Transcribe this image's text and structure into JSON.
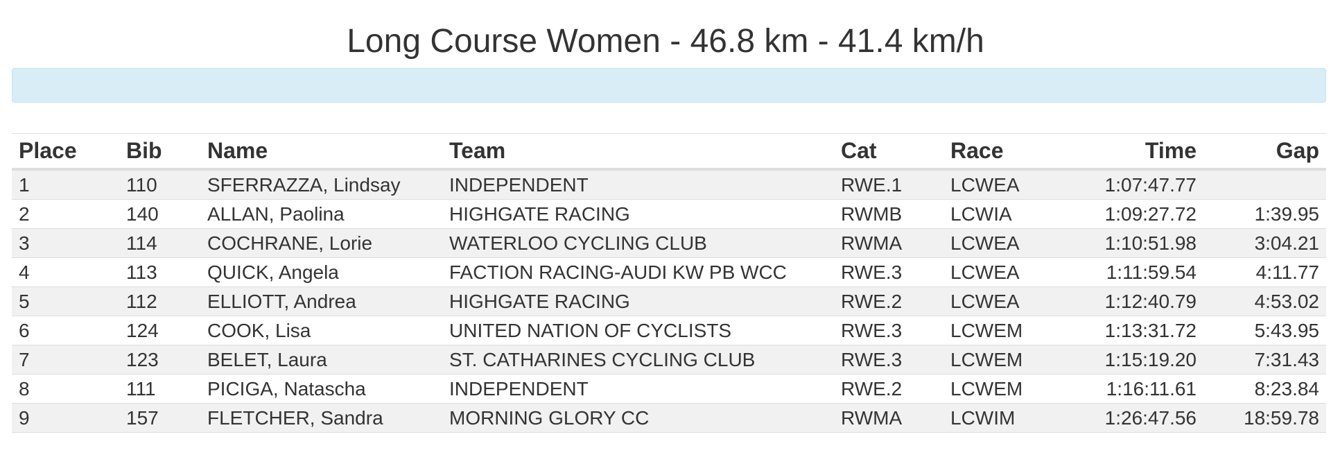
{
  "page": {
    "title": "Long Course Women - 46.8 km - 41.4 km/h",
    "info_bar_color": "#d9edf7"
  },
  "table": {
    "headers": {
      "place": "Place",
      "bib": "Bib",
      "name": "Name",
      "team": "Team",
      "cat": "Cat",
      "race": "Race",
      "time": "Time",
      "gap": "Gap"
    },
    "rows": [
      {
        "place": "1",
        "bib": "110",
        "name": "SFERRAZZA, Lindsay",
        "team": "INDEPENDENT",
        "cat": "RWE.1",
        "race": "LCWEA",
        "time": "1:07:47.77",
        "gap": ""
      },
      {
        "place": "2",
        "bib": "140",
        "name": "ALLAN, Paolina",
        "team": "HIGHGATE RACING",
        "cat": "RWMB",
        "race": "LCWIA",
        "time": "1:09:27.72",
        "gap": "1:39.95"
      },
      {
        "place": "3",
        "bib": "114",
        "name": "COCHRANE, Lorie",
        "team": "WATERLOO CYCLING CLUB",
        "cat": "RWMA",
        "race": "LCWEA",
        "time": "1:10:51.98",
        "gap": "3:04.21"
      },
      {
        "place": "4",
        "bib": "113",
        "name": "QUICK, Angela",
        "team": "FACTION RACING-AUDI KW PB WCC",
        "cat": "RWE.3",
        "race": "LCWEA",
        "time": "1:11:59.54",
        "gap": "4:11.77"
      },
      {
        "place": "5",
        "bib": "112",
        "name": "ELLIOTT, Andrea",
        "team": "HIGHGATE RACING",
        "cat": "RWE.2",
        "race": "LCWEA",
        "time": "1:12:40.79",
        "gap": "4:53.02"
      },
      {
        "place": "6",
        "bib": "124",
        "name": "COOK, Lisa",
        "team": "UNITED NATION OF CYCLISTS",
        "cat": "RWE.3",
        "race": "LCWEM",
        "time": "1:13:31.72",
        "gap": "5:43.95"
      },
      {
        "place": "7",
        "bib": "123",
        "name": "BELET, Laura",
        "team": "ST. CATHARINES CYCLING CLUB",
        "cat": "RWE.3",
        "race": "LCWEM",
        "time": "1:15:19.20",
        "gap": "7:31.43"
      },
      {
        "place": "8",
        "bib": "111",
        "name": "PICIGA, Natascha",
        "team": "INDEPENDENT",
        "cat": "RWE.2",
        "race": "LCWEM",
        "time": "1:16:11.61",
        "gap": "8:23.84"
      },
      {
        "place": "9",
        "bib": "157",
        "name": "FLETCHER, Sandra",
        "team": "MORNING GLORY CC",
        "cat": "RWMA",
        "race": "LCWIM",
        "time": "1:26:47.56",
        "gap": "18:59.78"
      }
    ]
  }
}
